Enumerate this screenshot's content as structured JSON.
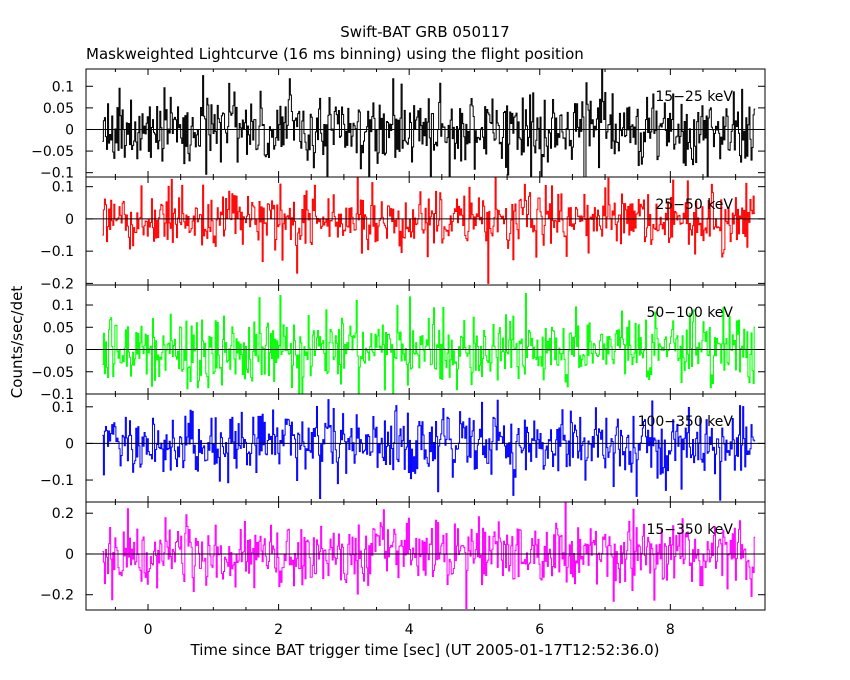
{
  "chart_data": {
    "type": "line",
    "title": "Swift-BAT GRB 050117",
    "subtitle": "Maskweighted Lightcurve (16 ms binning) using the flight position",
    "xlabel": "Time since BAT trigger time [sec] (UT 2005-01-17T12:52:36.0)",
    "ylabel": "Counts/sec/det",
    "xlim": [
      -0.95,
      9.45
    ],
    "x_ticks": [
      0,
      2,
      4,
      6,
      8
    ],
    "x_tick_labels": [
      "0",
      "2",
      "4",
      "6",
      "8"
    ],
    "data_x_range": [
      -0.7,
      9.3
    ],
    "bin_size_sec": 0.016,
    "zero_line": true,
    "panels": [
      {
        "name": "15-25 keV",
        "label": "15-25 keV",
        "color": "#000000",
        "ylim": [
          -0.11,
          0.14
        ],
        "y_ticks": [
          -0.1,
          -0.05,
          0,
          0.05,
          0.1
        ],
        "y_tick_labels": [
          "-0.1",
          "-0.05",
          "0",
          "0.05",
          "0.1"
        ],
        "mean": 0.0,
        "noise_sigma": 0.045
      },
      {
        "name": "25-50 keV",
        "label": "25-50 keV",
        "color": "#ff0000",
        "ylim": [
          -0.205,
          0.13
        ],
        "y_ticks": [
          -0.2,
          -0.1,
          0,
          0.1
        ],
        "y_tick_labels": [
          "-0.2",
          "-0.1",
          "0",
          "0.1"
        ],
        "mean": 0.0,
        "noise_sigma": 0.045,
        "notable_dip": {
          "x": 5.2,
          "y": -0.2
        }
      },
      {
        "name": "50-100 keV",
        "label": "50-100 keV",
        "color": "#00ff00",
        "ylim": [
          -0.1,
          0.145
        ],
        "y_ticks": [
          -0.1,
          -0.05,
          0,
          0.05,
          0.1
        ],
        "y_tick_labels": [
          "-0.1",
          "-0.05",
          "0",
          "0.05",
          "0.1"
        ],
        "mean": 0.0,
        "noise_sigma": 0.04
      },
      {
        "name": "100-350 keV",
        "label": "100-350 keV",
        "color": "#0000ff",
        "ylim": [
          -0.16,
          0.135
        ],
        "y_ticks": [
          -0.1,
          0,
          0.1
        ],
        "y_tick_labels": [
          "-0.1",
          "0",
          "0.1"
        ],
        "mean": 0.0,
        "noise_sigma": 0.045,
        "notable_dip": {
          "x": 8.75,
          "y": -0.155
        }
      },
      {
        "name": "15-350 keV",
        "label": "15-350 keV",
        "color": "#ff00ff",
        "ylim": [
          -0.275,
          0.255
        ],
        "y_ticks": [
          -0.2,
          0,
          0.2
        ],
        "y_tick_labels": [
          "-0.2",
          "0",
          "0.2"
        ],
        "mean": 0.0,
        "noise_sigma": 0.085
      }
    ]
  }
}
